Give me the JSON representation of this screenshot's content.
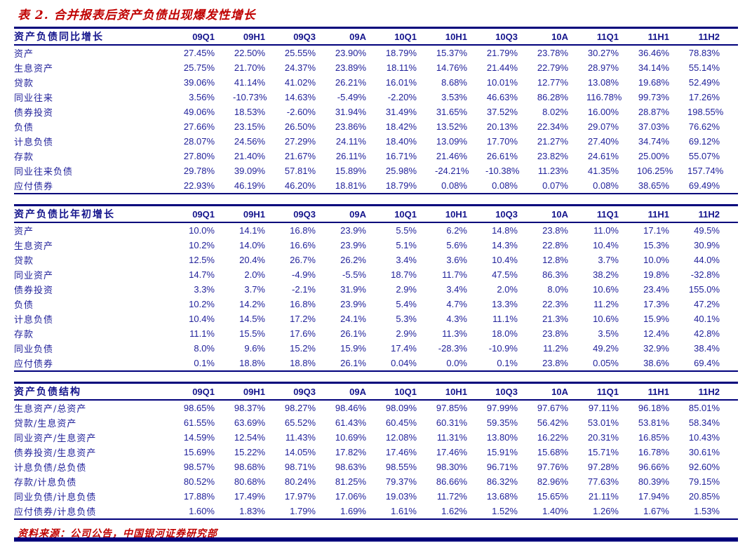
{
  "title": "表 2. 合并报表后资产负债出现爆发性增长",
  "source_note": "资料来源：公司公告，中国银河证券研究部",
  "colors": {
    "accent_red": "#c00000",
    "text_navy": "#22229b",
    "header_navy": "#14148c",
    "border_navy": "#00007b"
  },
  "columns": [
    "09Q1",
    "09H1",
    "09Q3",
    "09A",
    "10Q1",
    "10H1",
    "10Q3",
    "10A",
    "11Q1",
    "11H1",
    "11H2"
  ],
  "tables": [
    {
      "header": "资产负债同比增长",
      "rows": [
        {
          "label": "资产",
          "values": [
            "27.45%",
            "22.50%",
            "25.55%",
            "23.90%",
            "18.79%",
            "15.37%",
            "21.79%",
            "23.78%",
            "30.27%",
            "36.46%",
            "78.83%"
          ]
        },
        {
          "label": "生息资产",
          "values": [
            "25.75%",
            "21.70%",
            "24.37%",
            "23.89%",
            "18.11%",
            "14.76%",
            "21.44%",
            "22.79%",
            "28.97%",
            "34.14%",
            "55.14%"
          ]
        },
        {
          "label": "贷款",
          "values": [
            "39.06%",
            "41.14%",
            "41.02%",
            "26.21%",
            "16.01%",
            "8.68%",
            "10.01%",
            "12.77%",
            "13.08%",
            "19.68%",
            "52.49%"
          ]
        },
        {
          "label": "同业往来",
          "values": [
            "3.56%",
            "-10.73%",
            "14.63%",
            "-5.49%",
            "-2.20%",
            "3.53%",
            "46.63%",
            "86.28%",
            "116.78%",
            "99.73%",
            "17.26%"
          ]
        },
        {
          "label": "债券投资",
          "values": [
            "49.06%",
            "18.53%",
            "-2.60%",
            "31.94%",
            "31.49%",
            "31.65%",
            "37.52%",
            "8.02%",
            "16.00%",
            "28.87%",
            "198.55%"
          ]
        },
        {
          "label": "负债",
          "values": [
            "27.66%",
            "23.15%",
            "26.50%",
            "23.86%",
            "18.42%",
            "13.52%",
            "20.13%",
            "22.34%",
            "29.07%",
            "37.03%",
            "76.62%"
          ]
        },
        {
          "label": "计息负债",
          "values": [
            "28.07%",
            "24.56%",
            "27.29%",
            "24.11%",
            "18.40%",
            "13.09%",
            "17.70%",
            "21.27%",
            "27.40%",
            "34.74%",
            "69.12%"
          ]
        },
        {
          "label": "存款",
          "values": [
            "27.80%",
            "21.40%",
            "21.67%",
            "26.11%",
            "16.71%",
            "21.46%",
            "26.61%",
            "23.82%",
            "24.61%",
            "25.00%",
            "55.07%"
          ]
        },
        {
          "label": "同业往来负债",
          "values": [
            "29.78%",
            "39.09%",
            "57.81%",
            "15.89%",
            "25.98%",
            "-24.21%",
            "-10.38%",
            "11.23%",
            "41.35%",
            "106.25%",
            "157.74%"
          ]
        },
        {
          "label": "应付债券",
          "values": [
            "22.93%",
            "46.19%",
            "46.20%",
            "18.81%",
            "18.79%",
            "0.08%",
            "0.08%",
            "0.07%",
            "0.08%",
            "38.65%",
            "69.49%"
          ]
        }
      ]
    },
    {
      "header": "资产负债比年初增长",
      "rows": [
        {
          "label": "资产",
          "values": [
            "10.0%",
            "14.1%",
            "16.8%",
            "23.9%",
            "5.5%",
            "6.2%",
            "14.8%",
            "23.8%",
            "11.0%",
            "17.1%",
            "49.5%"
          ]
        },
        {
          "label": "生息资产",
          "values": [
            "10.2%",
            "14.0%",
            "16.6%",
            "23.9%",
            "5.1%",
            "5.6%",
            "14.3%",
            "22.8%",
            "10.4%",
            "15.3%",
            "30.9%"
          ]
        },
        {
          "label": "贷款",
          "values": [
            "12.5%",
            "20.4%",
            "26.7%",
            "26.2%",
            "3.4%",
            "3.6%",
            "10.4%",
            "12.8%",
            "3.7%",
            "10.0%",
            "44.0%"
          ]
        },
        {
          "label": "同业资产",
          "values": [
            "14.7%",
            "2.0%",
            "-4.9%",
            "-5.5%",
            "18.7%",
            "11.7%",
            "47.5%",
            "86.3%",
            "38.2%",
            "19.8%",
            "-32.8%"
          ]
        },
        {
          "label": "债券投资",
          "values": [
            "3.3%",
            "3.7%",
            "-2.1%",
            "31.9%",
            "2.9%",
            "3.4%",
            "2.0%",
            "8.0%",
            "10.6%",
            "23.4%",
            "155.0%"
          ]
        },
        {
          "label": "负债",
          "values": [
            "10.2%",
            "14.2%",
            "16.8%",
            "23.9%",
            "5.4%",
            "4.7%",
            "13.3%",
            "22.3%",
            "11.2%",
            "17.3%",
            "47.2%"
          ]
        },
        {
          "label": "计息负债",
          "values": [
            "10.4%",
            "14.5%",
            "17.2%",
            "24.1%",
            "5.3%",
            "4.3%",
            "11.1%",
            "21.3%",
            "10.6%",
            "15.9%",
            "40.1%"
          ]
        },
        {
          "label": "存款",
          "values": [
            "11.1%",
            "15.5%",
            "17.6%",
            "26.1%",
            "2.9%",
            "11.3%",
            "18.0%",
            "23.8%",
            "3.5%",
            "12.4%",
            "42.8%"
          ]
        },
        {
          "label": "同业负债",
          "values": [
            "8.0%",
            "9.6%",
            "15.2%",
            "15.9%",
            "17.4%",
            "-28.3%",
            "-10.9%",
            "11.2%",
            "49.2%",
            "32.9%",
            "38.4%"
          ]
        },
        {
          "label": "应付债券",
          "values": [
            "0.1%",
            "18.8%",
            "18.8%",
            "26.1%",
            "0.04%",
            "0.0%",
            "0.1%",
            "23.8%",
            "0.05%",
            "38.6%",
            "69.4%"
          ]
        }
      ]
    },
    {
      "header": "资产负债结构",
      "rows": [
        {
          "label": "生息资产/总资产",
          "values": [
            "98.65%",
            "98.37%",
            "98.27%",
            "98.46%",
            "98.09%",
            "97.85%",
            "97.99%",
            "97.67%",
            "97.11%",
            "96.18%",
            "85.01%"
          ]
        },
        {
          "label": "贷款/生息资产",
          "values": [
            "61.55%",
            "63.69%",
            "65.52%",
            "61.43%",
            "60.45%",
            "60.31%",
            "59.35%",
            "56.42%",
            "53.01%",
            "53.81%",
            "58.34%"
          ]
        },
        {
          "label": "同业资产/生息资产",
          "values": [
            "14.59%",
            "12.54%",
            "11.43%",
            "10.69%",
            "12.08%",
            "11.31%",
            "13.80%",
            "16.22%",
            "20.31%",
            "16.85%",
            "10.43%"
          ]
        },
        {
          "label": "债券投资/生息资产",
          "values": [
            "15.69%",
            "15.22%",
            "14.05%",
            "17.82%",
            "17.46%",
            "17.46%",
            "15.91%",
            "15.68%",
            "15.71%",
            "16.78%",
            "30.61%"
          ]
        },
        {
          "label": "计息负债/总负债",
          "values": [
            "98.57%",
            "98.68%",
            "98.71%",
            "98.63%",
            "98.55%",
            "98.30%",
            "96.71%",
            "97.76%",
            "97.28%",
            "96.66%",
            "92.60%"
          ]
        },
        {
          "label": "存款/计息负债",
          "values": [
            "80.52%",
            "80.68%",
            "80.24%",
            "81.25%",
            "79.37%",
            "86.66%",
            "86.32%",
            "82.96%",
            "77.63%",
            "80.39%",
            "79.15%"
          ]
        },
        {
          "label": "同业负债/计息负债",
          "values": [
            "17.88%",
            "17.49%",
            "17.97%",
            "17.06%",
            "19.03%",
            "11.72%",
            "13.68%",
            "15.65%",
            "21.11%",
            "17.94%",
            "20.85%"
          ]
        },
        {
          "label": "应付债券/计息负债",
          "values": [
            "1.60%",
            "1.83%",
            "1.79%",
            "1.69%",
            "1.61%",
            "1.62%",
            "1.52%",
            "1.40%",
            "1.26%",
            "1.67%",
            "1.53%"
          ]
        }
      ]
    }
  ]
}
